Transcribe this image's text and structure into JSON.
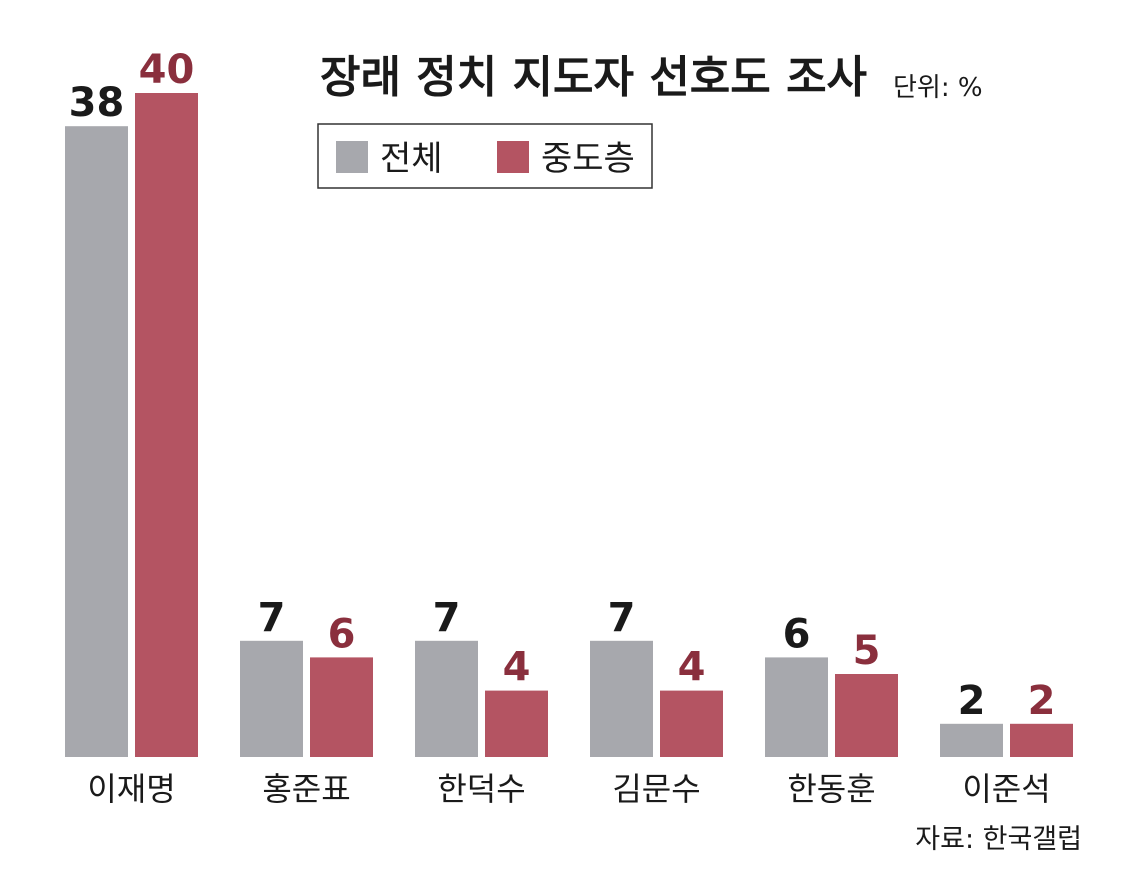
{
  "title": "장래 정치 지도자 선호도 조사",
  "unit_label": "단위: %",
  "source": "자료: 한국갤럽",
  "colors": {
    "전체": "#a7a8ad",
    "중도층": "#b45462",
    "중도층_label": "#8a2f3d",
    "전체_label": "#1a1a1a"
  },
  "chart_data": {
    "type": "bar",
    "title": "장래 정치 지도자 선호도 조사",
    "unit": "%",
    "categories": [
      "이재명",
      "홍준표",
      "한덕수",
      "김문수",
      "한동훈",
      "이준석"
    ],
    "series": [
      {
        "name": "전체",
        "values": [
          38,
          7,
          7,
          7,
          6,
          2
        ]
      },
      {
        "name": "중도층",
        "values": [
          40,
          6,
          4,
          4,
          5,
          2
        ]
      }
    ],
    "ylim": [
      0,
      40
    ],
    "grid": false,
    "legend": "top"
  }
}
